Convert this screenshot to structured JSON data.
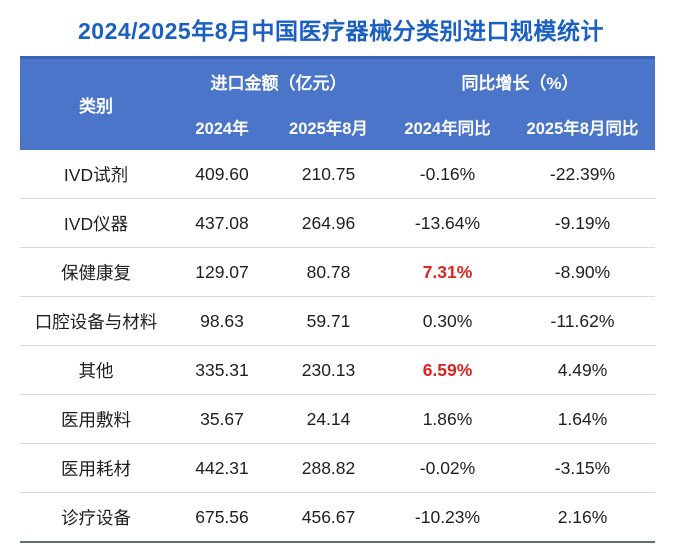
{
  "colors": {
    "title_blue": "#1A5FC2",
    "header_blue": "#4A75C8",
    "header_border_blue": "#3A63B8",
    "row_divider": "#D9D9D9",
    "bottom_border": "#5F6F74",
    "text_dark": "#1F1F1F",
    "highlight_red": "#DC2420"
  },
  "title": "2024/2025年8月中国医疗器械分类别进口规模统计",
  "table": {
    "category_header": "类别",
    "import_group_header": "进口金额（亿元）",
    "yoy_group_header": "同比增长（%）",
    "sub_headers": [
      "2024年",
      "2025年8月",
      "2024年同比",
      "2025年8月同比"
    ],
    "rows": [
      {
        "category": "IVD试剂",
        "amount_2024": "409.60",
        "amount_2025aug": "210.75",
        "yoy_2024": "-0.16%",
        "yoy_2025aug": "-22.39%"
      },
      {
        "category": "IVD仪器",
        "amount_2024": "437.08",
        "amount_2025aug": "264.96",
        "yoy_2024": "-13.64%",
        "yoy_2025aug": "-9.19%"
      },
      {
        "category": "保健康复",
        "amount_2024": "129.07",
        "amount_2025aug": "80.78",
        "yoy_2024": "7.31%",
        "yoy_2025aug": "-8.90%"
      },
      {
        "category": "口腔设备与材料",
        "amount_2024": "98.63",
        "amount_2025aug": "59.71",
        "yoy_2024": "0.30%",
        "yoy_2025aug": "-11.62%"
      },
      {
        "category": "其他",
        "amount_2024": "335.31",
        "amount_2025aug": "230.13",
        "yoy_2024": "6.59%",
        "yoy_2025aug": "4.49%"
      },
      {
        "category": "医用敷料",
        "amount_2024": "35.67",
        "amount_2025aug": "24.14",
        "yoy_2024": "1.86%",
        "yoy_2025aug": "1.64%"
      },
      {
        "category": "医用耗材",
        "amount_2024": "442.31",
        "amount_2025aug": "288.82",
        "yoy_2024": "-0.02%",
        "yoy_2025aug": "-3.15%"
      },
      {
        "category": "诊疗设备",
        "amount_2024": "675.56",
        "amount_2025aug": "456.67",
        "yoy_2024": "-10.23%",
        "yoy_2025aug": "2.16%"
      }
    ]
  },
  "chart_data": {
    "type": "table",
    "title": "2024/2025年8月中国医疗器械分类别进口规模统计",
    "columns": [
      "类别",
      "进口金额2024年(亿元)",
      "进口金额2025年8月(亿元)",
      "2024年同比(%)",
      "2025年8月同比(%)"
    ],
    "rows": [
      [
        "IVD试剂",
        409.6,
        210.75,
        -0.16,
        -22.39
      ],
      [
        "IVD仪器",
        437.08,
        264.96,
        -13.64,
        -9.19
      ],
      [
        "保健康复",
        129.07,
        80.78,
        7.31,
        -8.9
      ],
      [
        "口腔设备与材料",
        98.63,
        59.71,
        0.3,
        -11.62
      ],
      [
        "其他",
        335.31,
        230.13,
        6.59,
        4.49
      ],
      [
        "医用敷料",
        35.67,
        24.14,
        1.86,
        1.64
      ],
      [
        "医用耗材",
        442.31,
        288.82,
        -0.02,
        -3.15
      ],
      [
        "诊疗设备",
        675.56,
        456.67,
        -10.23,
        2.16
      ]
    ],
    "highlighted_cells": [
      {
        "row": "保健康复",
        "column": "2024年同比(%)",
        "color": "#DC2420"
      },
      {
        "row": "其他",
        "column": "2024年同比(%)",
        "color": "#DC2420"
      }
    ]
  }
}
